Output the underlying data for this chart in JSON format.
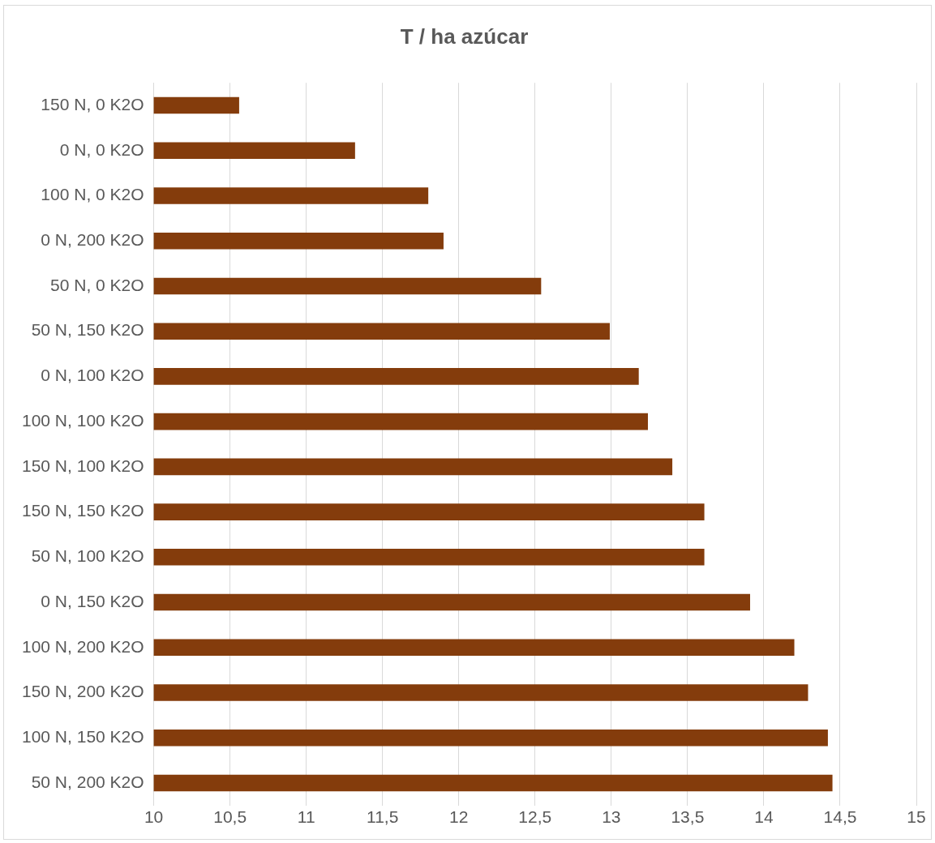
{
  "chart_data": {
    "type": "bar",
    "orientation": "horizontal",
    "title": "T / ha azúcar",
    "categories": [
      "150 N, 0 K2O",
      "0 N, 0 K2O",
      "100 N, 0 K2O",
      "0 N, 200 K2O",
      "50 N, 0 K2O",
      "50 N, 150 K2O",
      "0 N, 100 K2O",
      "100 N, 100 K2O",
      "150 N, 100 K2O",
      "150 N, 150 K2O",
      "50 N, 100 K2O",
      "0 N, 150 K2O",
      "100 N, 200 K2O",
      "150 N, 200 K2O",
      "100 N, 150 K2O",
      "50 N, 200 K2O"
    ],
    "values": [
      10.56,
      11.32,
      11.8,
      11.9,
      12.54,
      12.99,
      13.18,
      13.24,
      13.4,
      13.61,
      13.61,
      13.91,
      14.2,
      14.29,
      14.42,
      14.45
    ],
    "color": "#843c0c",
    "xlim": [
      10,
      15
    ],
    "xticks": [
      10,
      {
        "value": 10.5,
        "label": "10,5"
      },
      11,
      {
        "value": 11.5,
        "label": "11,5"
      },
      12,
      {
        "value": 12.5,
        "label": "12,5"
      },
      13,
      {
        "value": 13.5,
        "label": "13,5"
      },
      14,
      {
        "value": 14.5,
        "label": "14,5"
      },
      15
    ],
    "grid": "x"
  }
}
